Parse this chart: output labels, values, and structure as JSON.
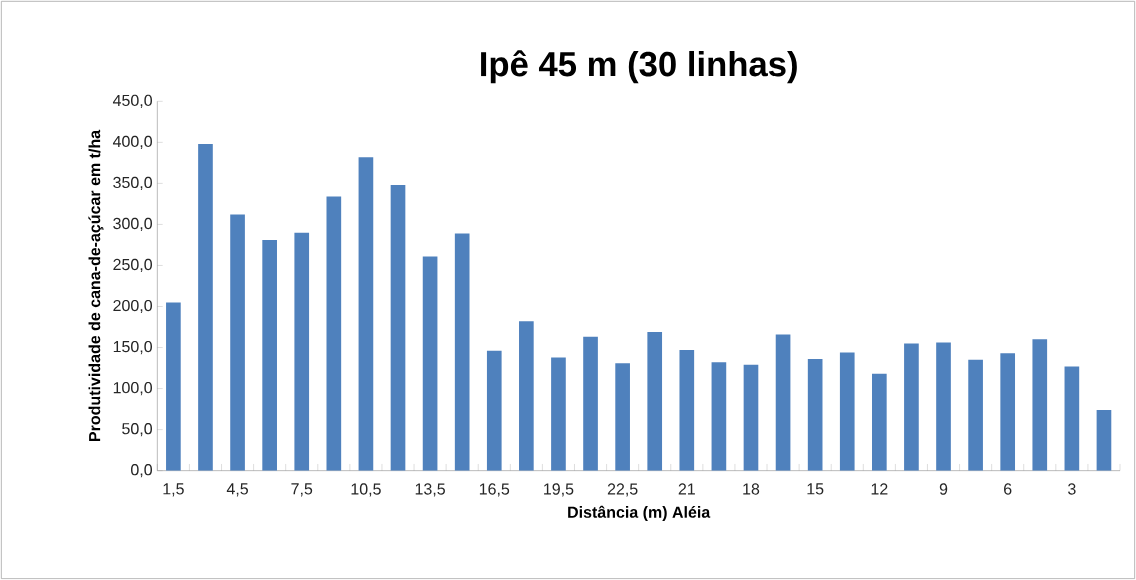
{
  "chart_data": {
    "type": "bar",
    "title": "Ipê 45 m (30 linhas)",
    "xlabel": "Distância (m) Aléia",
    "ylabel": "Produtividade de cana-de-açúcar em t/ha",
    "categories": [
      "1,5",
      null,
      "4,5",
      null,
      "7,5",
      null,
      "10,5",
      null,
      "13,5",
      null,
      "16,5",
      null,
      "19,5",
      null,
      "22,5",
      null,
      "21",
      null,
      "18",
      null,
      "15",
      null,
      "12",
      null,
      "9",
      null,
      "6",
      null,
      "3",
      null
    ],
    "values": [
      205,
      398,
      312,
      281,
      290,
      334,
      382,
      348,
      261,
      289,
      146,
      182,
      138,
      163,
      131,
      169,
      147,
      132,
      129,
      166,
      136,
      144,
      118,
      155,
      156,
      135,
      143,
      160,
      127,
      74
    ],
    "color": "#4f81bd",
    "ylim": [
      0,
      450
    ],
    "yticks": [
      {
        "value": 0,
        "label": "0,0"
      },
      {
        "value": 50,
        "label": "50,0"
      },
      {
        "value": 100,
        "label": "100,0"
      },
      {
        "value": 150,
        "label": "150,0"
      },
      {
        "value": 200,
        "label": "200,0"
      },
      {
        "value": 250,
        "label": "250,0"
      },
      {
        "value": 300,
        "label": "300,0"
      },
      {
        "value": 350,
        "label": "350,0"
      },
      {
        "value": 400,
        "label": "400,0"
      },
      {
        "value": 450,
        "label": "450,0"
      }
    ],
    "grid": false
  }
}
